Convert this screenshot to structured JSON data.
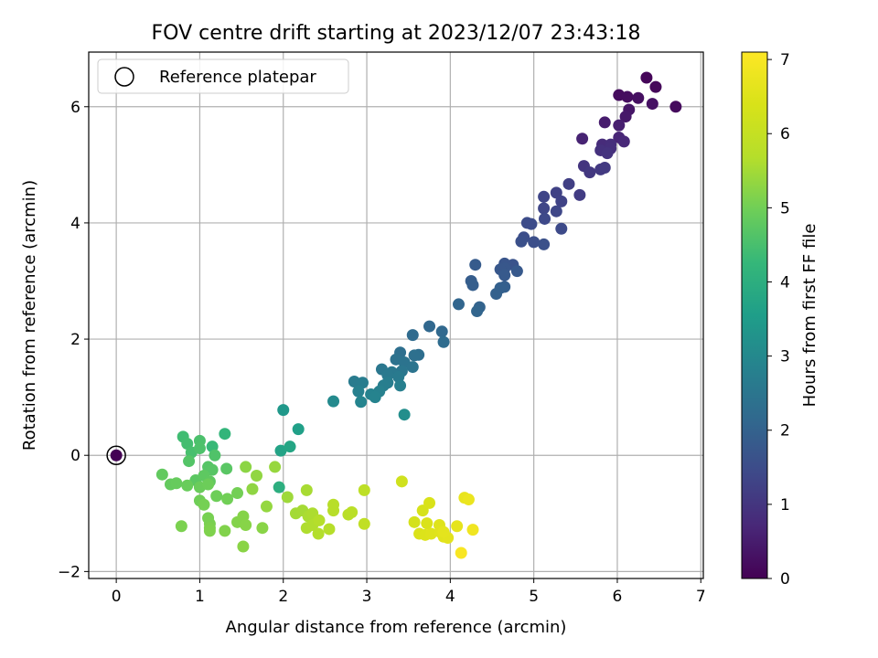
{
  "chart_data": {
    "type": "scatter",
    "title": "FOV centre drift starting at 2023/12/07 23:43:18",
    "xlabel": "Angular distance from reference (arcmin)",
    "ylabel": "Rotation from reference (arcmin)",
    "xlim": [
      -0.33,
      7.03
    ],
    "ylim": [
      -2.12,
      6.94
    ],
    "xticks": [
      0,
      1,
      2,
      3,
      4,
      5,
      6,
      7
    ],
    "xtick_labels": [
      "0",
      "1",
      "2",
      "3",
      "4",
      "5",
      "6",
      "7"
    ],
    "yticks": [
      -2,
      0,
      2,
      4,
      6
    ],
    "ytick_labels": [
      "−2",
      "0",
      "2",
      "4",
      "6"
    ],
    "grid": true,
    "legend": {
      "position": "upper-left",
      "entries": [
        "Reference platepar"
      ]
    },
    "colorbar": {
      "label": "Hours from first FF file",
      "colormap": "viridis",
      "range": [
        0,
        7.1
      ],
      "ticks": [
        0,
        1,
        2,
        3,
        4,
        5,
        6,
        7
      ],
      "tick_labels": [
        "0",
        "1",
        "2",
        "3",
        "4",
        "5",
        "6",
        "7"
      ]
    },
    "reference_point": {
      "x": 0,
      "y": 0,
      "c": 0
    },
    "series": [
      {
        "points": [
          [
            6.35,
            6.5,
            0.1
          ],
          [
            6.46,
            6.34,
            0.12
          ],
          [
            6.02,
            6.2,
            0.2
          ],
          [
            6.12,
            6.17,
            0.22
          ],
          [
            6.25,
            6.15,
            0.25
          ],
          [
            6.7,
            6.0,
            0.18
          ],
          [
            6.42,
            6.05,
            0.3
          ],
          [
            6.14,
            5.95,
            0.38
          ],
          [
            6.1,
            5.83,
            0.42
          ],
          [
            5.85,
            5.73,
            0.5
          ],
          [
            6.02,
            5.68,
            0.55
          ],
          [
            5.58,
            5.45,
            0.62
          ],
          [
            6.02,
            5.47,
            0.68
          ],
          [
            6.08,
            5.4,
            0.72
          ],
          [
            5.82,
            5.35,
            0.8
          ],
          [
            5.92,
            5.35,
            0.83
          ],
          [
            5.92,
            5.28,
            0.87
          ],
          [
            5.8,
            5.25,
            0.9
          ],
          [
            5.88,
            5.2,
            0.95
          ],
          [
            5.6,
            4.98,
            1.0
          ],
          [
            5.67,
            4.87,
            1.05
          ],
          [
            5.8,
            4.92,
            1.07
          ],
          [
            5.85,
            4.95,
            1.1
          ],
          [
            5.55,
            4.48,
            1.15
          ],
          [
            5.42,
            4.67,
            1.2
          ],
          [
            5.27,
            4.52,
            1.27
          ],
          [
            5.33,
            4.37,
            1.3
          ],
          [
            5.12,
            4.45,
            1.33
          ],
          [
            5.12,
            4.25,
            1.35
          ],
          [
            5.27,
            4.2,
            1.38
          ],
          [
            5.13,
            4.07,
            1.42
          ],
          [
            5.33,
            3.9,
            1.45
          ],
          [
            4.92,
            4.0,
            1.48
          ],
          [
            4.97,
            3.98,
            1.5
          ],
          [
            4.88,
            3.75,
            1.53
          ],
          [
            5.0,
            3.67,
            1.55
          ],
          [
            4.85,
            3.68,
            1.57
          ],
          [
            5.12,
            3.63,
            1.6
          ],
          [
            4.75,
            3.28,
            1.65
          ],
          [
            4.65,
            3.3,
            1.7
          ],
          [
            4.65,
            3.22,
            1.73
          ],
          [
            4.6,
            3.2,
            1.75
          ],
          [
            4.8,
            3.17,
            1.78
          ],
          [
            4.65,
            3.1,
            1.8
          ],
          [
            4.3,
            3.28,
            1.83
          ],
          [
            4.25,
            3.0,
            1.87
          ],
          [
            4.27,
            2.93,
            1.9
          ],
          [
            4.65,
            2.9,
            1.93
          ],
          [
            4.6,
            2.88,
            1.95
          ],
          [
            4.55,
            2.78,
            1.98
          ],
          [
            4.35,
            2.55,
            2.02
          ],
          [
            4.32,
            2.48,
            2.05
          ],
          [
            4.1,
            2.6,
            2.08
          ],
          [
            3.75,
            2.22,
            2.12
          ],
          [
            3.9,
            2.13,
            2.15
          ],
          [
            3.55,
            2.07,
            2.2
          ],
          [
            3.92,
            1.95,
            2.25
          ],
          [
            3.62,
            1.73,
            2.3
          ],
          [
            3.4,
            1.77,
            2.33
          ],
          [
            3.57,
            1.72,
            2.35
          ],
          [
            3.35,
            1.65,
            2.4
          ],
          [
            3.45,
            1.6,
            2.43
          ],
          [
            3.55,
            1.52,
            2.46
          ],
          [
            3.42,
            1.45,
            2.5
          ],
          [
            3.18,
            1.48,
            2.53
          ],
          [
            3.3,
            1.43,
            2.56
          ],
          [
            3.25,
            1.38,
            2.6
          ],
          [
            3.38,
            1.35,
            2.63
          ],
          [
            2.85,
            1.27,
            2.66
          ],
          [
            2.95,
            1.25,
            2.68
          ],
          [
            3.25,
            1.25,
            2.7
          ],
          [
            3.2,
            1.2,
            2.72
          ],
          [
            3.4,
            1.2,
            2.75
          ],
          [
            2.9,
            1.1,
            2.78
          ],
          [
            3.15,
            1.1,
            2.8
          ],
          [
            3.05,
            1.05,
            2.83
          ],
          [
            3.1,
            1.0,
            2.86
          ],
          [
            2.93,
            0.92,
            2.9
          ],
          [
            2.6,
            0.93,
            3.05
          ],
          [
            3.45,
            0.7,
            3.15
          ],
          [
            2.0,
            0.78,
            3.4
          ],
          [
            2.18,
            0.45,
            3.6
          ],
          [
            1.97,
            0.08,
            3.7
          ],
          [
            2.08,
            0.15,
            3.75
          ],
          [
            1.95,
            -0.55,
            4.0
          ],
          [
            1.3,
            0.37,
            4.2
          ],
          [
            1.15,
            0.15,
            4.3
          ],
          [
            0.8,
            0.32,
            4.4
          ],
          [
            0.85,
            0.2,
            4.45
          ],
          [
            0.9,
            0.05,
            4.5
          ],
          [
            1.0,
            0.25,
            4.55
          ],
          [
            1.0,
            0.12,
            4.57
          ],
          [
            1.18,
            0.0,
            4.6
          ],
          [
            0.87,
            -0.1,
            4.65
          ],
          [
            1.1,
            -0.2,
            4.67
          ],
          [
            1.15,
            -0.25,
            4.7
          ],
          [
            1.32,
            -0.23,
            4.72
          ],
          [
            0.95,
            -0.43,
            4.75
          ],
          [
            1.05,
            -0.35,
            4.77
          ],
          [
            1.12,
            -0.45,
            4.8
          ],
          [
            0.55,
            -0.33,
            4.82
          ],
          [
            0.65,
            -0.5,
            4.85
          ],
          [
            0.72,
            -0.48,
            4.87
          ],
          [
            0.85,
            -0.52,
            4.9
          ],
          [
            1.0,
            -0.55,
            4.92
          ],
          [
            1.1,
            -0.5,
            4.94
          ],
          [
            1.2,
            -0.7,
            4.96
          ],
          [
            1.0,
            -0.78,
            4.98
          ],
          [
            1.33,
            -0.75,
            5.0
          ],
          [
            1.45,
            -0.65,
            5.02
          ],
          [
            1.05,
            -0.85,
            5.04
          ],
          [
            1.1,
            -1.08,
            5.06
          ],
          [
            1.12,
            -1.18,
            5.08
          ],
          [
            0.78,
            -1.22,
            5.1
          ],
          [
            1.12,
            -1.25,
            5.12
          ],
          [
            1.12,
            -1.3,
            5.14
          ],
          [
            1.3,
            -1.3,
            5.16
          ],
          [
            1.45,
            -1.15,
            5.18
          ],
          [
            1.52,
            -1.05,
            5.2
          ],
          [
            1.55,
            -1.2,
            5.22
          ],
          [
            1.75,
            -1.25,
            5.24
          ],
          [
            1.52,
            -1.57,
            5.25
          ],
          [
            1.55,
            -0.2,
            5.27
          ],
          [
            1.63,
            -0.58,
            5.3
          ],
          [
            1.68,
            -0.35,
            5.32
          ],
          [
            1.8,
            -0.88,
            5.35
          ],
          [
            1.9,
            -0.2,
            5.38
          ],
          [
            2.05,
            -0.72,
            5.45
          ],
          [
            2.15,
            -1.0,
            5.5
          ],
          [
            2.23,
            -0.95,
            5.52
          ],
          [
            2.28,
            -0.6,
            5.55
          ],
          [
            2.3,
            -1.05,
            5.57
          ],
          [
            2.35,
            -1.0,
            5.6
          ],
          [
            2.28,
            -1.25,
            5.62
          ],
          [
            2.35,
            -1.2,
            5.64
          ],
          [
            2.42,
            -1.35,
            5.66
          ],
          [
            2.43,
            -1.12,
            5.68
          ],
          [
            2.55,
            -1.27,
            5.7
          ],
          [
            2.6,
            -0.95,
            5.72
          ],
          [
            2.6,
            -0.85,
            5.74
          ],
          [
            2.78,
            -1.02,
            5.76
          ],
          [
            2.82,
            -0.98,
            5.78
          ],
          [
            2.97,
            -0.6,
            5.85
          ],
          [
            2.97,
            -1.18,
            5.9
          ],
          [
            3.42,
            -0.45,
            6.2
          ],
          [
            3.57,
            -1.15,
            6.3
          ],
          [
            3.67,
            -0.95,
            6.35
          ],
          [
            3.75,
            -0.82,
            6.4
          ],
          [
            3.72,
            -1.17,
            6.42
          ],
          [
            3.63,
            -1.35,
            6.45
          ],
          [
            3.7,
            -1.37,
            6.47
          ],
          [
            3.77,
            -1.35,
            6.5
          ],
          [
            3.87,
            -1.2,
            6.52
          ],
          [
            3.88,
            -1.32,
            6.55
          ],
          [
            3.92,
            -1.4,
            6.57
          ],
          [
            3.97,
            -1.42,
            6.6
          ],
          [
            3.92,
            -1.32,
            6.62
          ],
          [
            4.08,
            -1.22,
            6.65
          ],
          [
            4.17,
            -0.73,
            6.7
          ],
          [
            4.22,
            -0.76,
            6.75
          ],
          [
            4.27,
            -1.28,
            6.85
          ],
          [
            4.13,
            -1.68,
            7.0
          ]
        ]
      }
    ]
  }
}
